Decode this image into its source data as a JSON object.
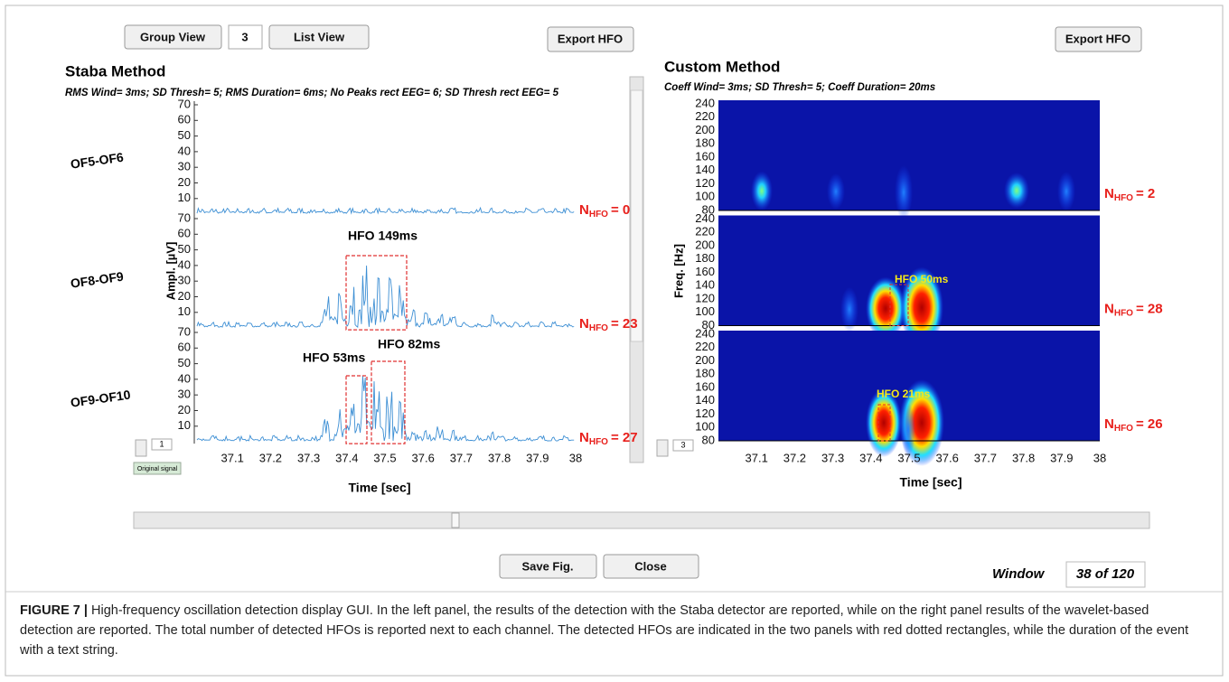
{
  "toolbar": {
    "group_view": "Group View",
    "group_count": "3",
    "list_view": "List View",
    "export_left": "Export HFO",
    "export_right": "Export HFO"
  },
  "count_symbol": "N",
  "count_subscript": "HFO",
  "left_panel": {
    "title": "Staba Method",
    "params": "RMS Wind= 3ms; SD Thresh= 5; RMS Duration= 6ms; No Peaks rect EEG= 6; SD Thresh rect EEG= 5",
    "y_axis_label": "Ampl. [µV]",
    "x_axis_label": "Time [sec]",
    "yticks": [
      70,
      60,
      50,
      40,
      30,
      20,
      10
    ],
    "xticks": [
      37.1,
      37.2,
      37.3,
      37.4,
      37.5,
      37.6,
      37.7,
      37.8,
      37.9,
      38
    ],
    "channels": [
      {
        "name": "OF5-OF6",
        "count": "= 0",
        "events": []
      },
      {
        "name": "OF8-OF9",
        "count": "= 23",
        "events": [
          "HFO 149ms"
        ]
      },
      {
        "name": "OF9-OF10",
        "count": "= 27",
        "events": [
          "HFO 53ms",
          "HFO 82ms"
        ]
      }
    ],
    "spinner": "1",
    "signal_button": "Original signal"
  },
  "right_panel": {
    "title": "Custom Method",
    "params": "Coeff Wind= 3ms; SD Thresh= 5; Coeff Duration= 20ms",
    "y_axis_label": "Freq. [Hz]",
    "x_axis_label": "Time [sec]",
    "yticks": [
      240,
      220,
      200,
      180,
      160,
      140,
      120,
      100,
      80
    ],
    "xticks": [
      37.1,
      37.2,
      37.3,
      37.4,
      37.5,
      37.6,
      37.7,
      37.8,
      37.9,
      38
    ],
    "channels": [
      {
        "count": "= 2",
        "events": []
      },
      {
        "count": "= 28",
        "events": [
          "HFO 50ms"
        ]
      },
      {
        "count": "= 26",
        "events": [
          "HFO 21ms"
        ]
      }
    ],
    "spinner": "3"
  },
  "footer": {
    "save": "Save Fig.",
    "close": "Close",
    "window_label": "Window",
    "window_value": "38 of 120"
  },
  "caption": {
    "label": "FIGURE 7 |",
    "text": "High-frequency oscillation detection display GUI. In the left panel, the results of the detection with the Staba detector are reported, while on the right panel results of the wavelet-based detection are reported. The total number of detected HFOs is reported next to each channel. The detected HFOs are indicated in the two panels with red dotted rectangles, while the duration of the event with a text string."
  }
}
